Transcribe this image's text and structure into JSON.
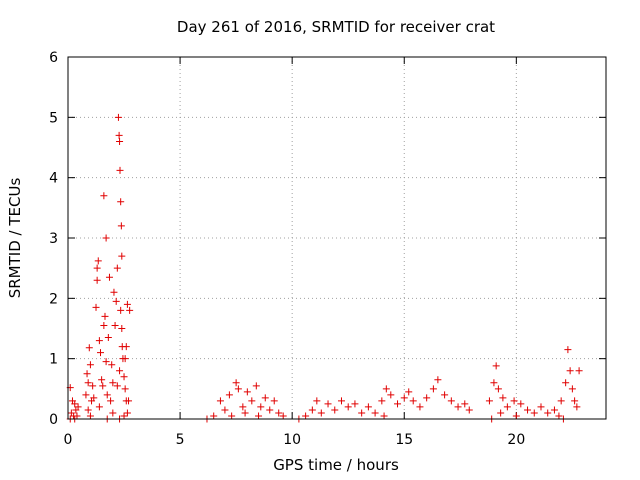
{
  "chart_data": {
    "type": "scatter",
    "title": "Day 261 of 2016, SRMTID for receiver crat",
    "xlabel": "GPS time / hours",
    "ylabel": "SRMTID / TECUs",
    "xlim": [
      0,
      24
    ],
    "ylim": [
      0,
      6
    ],
    "xticks": [
      0,
      5,
      10,
      15,
      20
    ],
    "yticks": [
      0,
      1,
      2,
      3,
      4,
      5,
      6
    ],
    "grid": true,
    "marker": "+",
    "color": "#e00000",
    "series": [
      {
        "name": "SRMTID",
        "points": [
          [
            0.1,
            0.52
          ],
          [
            0.15,
            0.1
          ],
          [
            0.2,
            0.3
          ],
          [
            0.25,
            0.05
          ],
          [
            0.3,
            0.25
          ],
          [
            0.35,
            0.15
          ],
          [
            0.4,
            0.05
          ],
          [
            0.1,
            0.0
          ],
          [
            0.3,
            0.0
          ],
          [
            0.45,
            0.2
          ],
          [
            0.8,
            0.4
          ],
          [
            0.85,
            0.75
          ],
          [
            0.9,
            0.6
          ],
          [
            0.95,
            1.18
          ],
          [
            1.0,
            0.9
          ],
          [
            1.05,
            0.3
          ],
          [
            0.9,
            0.15
          ],
          [
            1.0,
            0.05
          ],
          [
            1.1,
            0.55
          ],
          [
            1.15,
            0.35
          ],
          [
            1.25,
            1.85
          ],
          [
            1.3,
            2.3
          ],
          [
            1.3,
            2.5
          ],
          [
            1.35,
            2.62
          ],
          [
            1.4,
            1.3
          ],
          [
            1.45,
            1.1
          ],
          [
            1.5,
            0.65
          ],
          [
            1.4,
            0.2
          ],
          [
            1.55,
            0.55
          ],
          [
            1.6,
            3.7
          ],
          [
            1.6,
            1.55
          ],
          [
            1.65,
            1.7
          ],
          [
            1.7,
            3.0
          ],
          [
            1.7,
            0.95
          ],
          [
            1.75,
            0.4
          ],
          [
            1.8,
            1.35
          ],
          [
            1.85,
            2.35
          ],
          [
            1.9,
            0.3
          ],
          [
            1.95,
            0.9
          ],
          [
            2.0,
            0.6
          ],
          [
            2.05,
            2.1
          ],
          [
            2.1,
            1.55
          ],
          [
            2.15,
            1.95
          ],
          [
            2.2,
            2.5
          ],
          [
            2.25,
            5.0
          ],
          [
            2.28,
            4.7
          ],
          [
            2.3,
            4.6
          ],
          [
            2.32,
            4.12
          ],
          [
            2.35,
            3.6
          ],
          [
            2.38,
            3.2
          ],
          [
            2.4,
            2.7
          ],
          [
            2.42,
            1.2
          ],
          [
            2.45,
            1.0
          ],
          [
            2.5,
            0.7
          ],
          [
            2.55,
            0.5
          ],
          [
            2.6,
            0.3
          ],
          [
            2.2,
            0.55
          ],
          [
            2.3,
            0.8
          ],
          [
            2.35,
            1.8
          ],
          [
            2.4,
            1.5
          ],
          [
            2.6,
            1.2
          ],
          [
            2.65,
            1.9
          ],
          [
            2.7,
            0.3
          ],
          [
            2.65,
            0.1
          ],
          [
            2.75,
            1.8
          ],
          [
            2.5,
            0.05
          ],
          [
            2.0,
            0.1
          ],
          [
            1.75,
            0.0
          ],
          [
            2.3,
            0.0
          ],
          [
            2.55,
            1.0
          ],
          [
            6.2,
            0.0
          ],
          [
            6.5,
            0.05
          ],
          [
            6.8,
            0.3
          ],
          [
            7.0,
            0.15
          ],
          [
            7.2,
            0.4
          ],
          [
            7.5,
            0.6
          ],
          [
            7.6,
            0.5
          ],
          [
            7.8,
            0.2
          ],
          [
            8.0,
            0.45
          ],
          [
            8.2,
            0.3
          ],
          [
            8.4,
            0.55
          ],
          [
            8.6,
            0.2
          ],
          [
            8.8,
            0.35
          ],
          [
            9.0,
            0.15
          ],
          [
            9.2,
            0.3
          ],
          [
            9.4,
            0.1
          ],
          [
            9.6,
            0.05
          ],
          [
            7.3,
            0.05
          ],
          [
            7.9,
            0.1
          ],
          [
            8.5,
            0.05
          ],
          [
            10.3,
            0.0
          ],
          [
            10.6,
            0.05
          ],
          [
            10.9,
            0.15
          ],
          [
            11.1,
            0.3
          ],
          [
            11.3,
            0.1
          ],
          [
            11.6,
            0.25
          ],
          [
            11.9,
            0.15
          ],
          [
            12.2,
            0.3
          ],
          [
            12.5,
            0.2
          ],
          [
            12.8,
            0.25
          ],
          [
            13.1,
            0.1
          ],
          [
            13.4,
            0.2
          ],
          [
            13.7,
            0.1
          ],
          [
            14.0,
            0.3
          ],
          [
            14.2,
            0.5
          ],
          [
            14.4,
            0.4
          ],
          [
            14.7,
            0.25
          ],
          [
            15.0,
            0.35
          ],
          [
            15.2,
            0.45
          ],
          [
            15.4,
            0.3
          ],
          [
            15.7,
            0.2
          ],
          [
            16.0,
            0.35
          ],
          [
            16.3,
            0.5
          ],
          [
            16.5,
            0.65
          ],
          [
            16.8,
            0.4
          ],
          [
            17.1,
            0.3
          ],
          [
            17.4,
            0.2
          ],
          [
            17.7,
            0.25
          ],
          [
            17.9,
            0.15
          ],
          [
            14.1,
            0.05
          ],
          [
            18.8,
            0.3
          ],
          [
            19.0,
            0.6
          ],
          [
            19.1,
            0.88
          ],
          [
            19.2,
            0.5
          ],
          [
            19.4,
            0.35
          ],
          [
            19.6,
            0.2
          ],
          [
            19.9,
            0.3
          ],
          [
            20.2,
            0.25
          ],
          [
            20.5,
            0.15
          ],
          [
            20.8,
            0.1
          ],
          [
            21.1,
            0.2
          ],
          [
            21.4,
            0.1
          ],
          [
            21.7,
            0.15
          ],
          [
            22.0,
            0.3
          ],
          [
            22.2,
            0.6
          ],
          [
            22.3,
            1.15
          ],
          [
            22.4,
            0.8
          ],
          [
            22.5,
            0.5
          ],
          [
            22.6,
            0.3
          ],
          [
            22.8,
            0.8
          ],
          [
            22.7,
            0.2
          ],
          [
            21.9,
            0.05
          ],
          [
            20.0,
            0.05
          ],
          [
            19.3,
            0.1
          ],
          [
            18.9,
            0.0
          ],
          [
            22.1,
            0.0
          ]
        ]
      }
    ]
  }
}
